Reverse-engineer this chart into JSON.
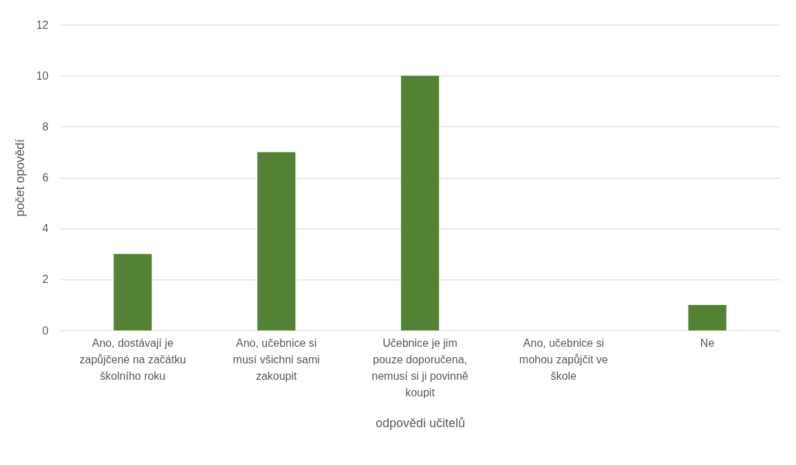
{
  "chart_data": {
    "type": "bar",
    "xlabel": "odpovědi učitelů",
    "ylabel": "počet opovědí",
    "categories": [
      "Ano, dostávají je zapůjčené na začátku školního roku",
      "Ano, učebnice si musí všichni sami zakoupit",
      "Učebnice je jim pouze doporučena, nemusí si ji povinně koupit",
      "Ano, učebnice si mohou zapůjčit ve škole",
      "Ne"
    ],
    "values": [
      3,
      7,
      10,
      0,
      1
    ],
    "color": "#548235",
    "ylim": [
      0,
      12
    ],
    "yticks": [
      0,
      2,
      4,
      6,
      8,
      10,
      12
    ],
    "grid": "y"
  }
}
